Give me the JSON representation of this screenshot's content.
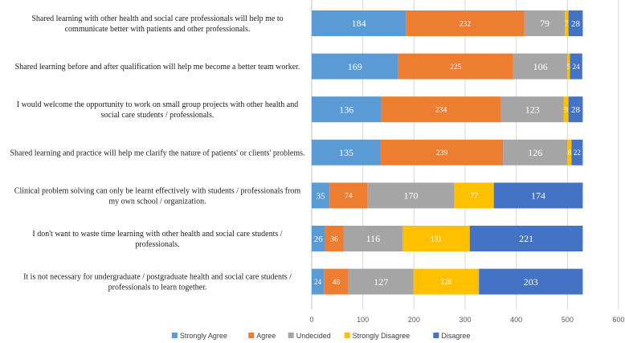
{
  "chart_data": {
    "type": "bar",
    "orientation": "horizontal",
    "stacked": true,
    "categories": [
      [
        "Shared learning with other health and social care professionals will help me to",
        "communicate better with patients and other professionals."
      ],
      [
        "Shared learning before and after qualification will help me become a better team worker."
      ],
      [
        "I would welcome the opportunity to work on small group projects with other health and",
        "social care students / professionals."
      ],
      [
        "Shared learning and practice will help me clarify the nature of patients' or clients' problems."
      ],
      [
        "Clinical problem solving can only be learnt effectively with students / professionals from",
        "my own school / organization."
      ],
      [
        "I don't want to waste time learning with other health and social care students /",
        "professionals."
      ],
      [
        "It is not necessary for undergraduate / postgraduate health and social care students /",
        "professionals to learn together."
      ]
    ],
    "series": [
      {
        "name": "Strongly Agree",
        "color": "#5B9BD5",
        "values": [
          184,
          169,
          136,
          135,
          35,
          26,
          24
        ]
      },
      {
        "name": "Agree",
        "color": "#ED7D31",
        "values": [
          232,
          225,
          234,
          239,
          74,
          36,
          48
        ]
      },
      {
        "name": "Undecided",
        "color": "#A5A5A5",
        "values": [
          79,
          106,
          123,
          126,
          170,
          116,
          127
        ]
      },
      {
        "name": "Strongly Disagree",
        "color": "#FFC000",
        "values": [
          7,
          5,
          9,
          8,
          77,
          131,
          128
        ]
      },
      {
        "name": "Disagree",
        "color": "#4472C4",
        "values": [
          28,
          24,
          28,
          22,
          174,
          221,
          203
        ]
      }
    ],
    "xlim": [
      0,
      600
    ],
    "xticks": [
      0,
      100,
      200,
      300,
      400,
      500,
      600
    ],
    "grid": true,
    "legend": "bottom",
    "title": "",
    "xlabel": "",
    "ylabel": ""
  }
}
